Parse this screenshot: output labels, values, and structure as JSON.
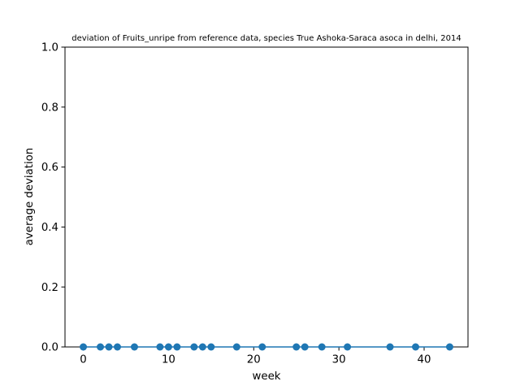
{
  "chart_data": {
    "type": "scatter",
    "title": "deviation of Fruits_unripe from reference data, species True Ashoka-Saraca asoca in delhi, 2014",
    "xlabel": "week",
    "ylabel": "average deviation",
    "xlim": [
      -2.15,
      45.15
    ],
    "ylim": [
      0,
      1.0
    ],
    "x_ticks": [
      0,
      10,
      20,
      30,
      40
    ],
    "y_ticks": [
      0.0,
      0.2,
      0.4,
      0.6,
      0.8,
      1.0
    ],
    "x_tick_labels": [
      "0",
      "10",
      "20",
      "30",
      "40"
    ],
    "y_tick_labels": [
      "0.0",
      "0.2",
      "0.4",
      "0.6",
      "0.8",
      "1.0"
    ],
    "grid": false,
    "series": [
      {
        "color": "#1f77b4",
        "x": [
          0,
          2,
          3,
          4,
          6,
          9,
          10,
          11,
          13,
          14,
          15,
          18,
          21,
          25,
          26,
          28,
          31,
          36,
          39,
          43
        ],
        "y": [
          0,
          0,
          0,
          0,
          0,
          0,
          0,
          0,
          0,
          0,
          0,
          0,
          0,
          0,
          0,
          0,
          0,
          0,
          0,
          0
        ]
      }
    ]
  }
}
